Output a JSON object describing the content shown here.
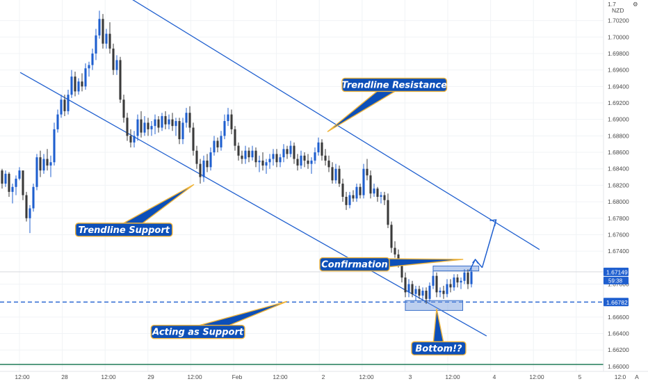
{
  "chart_data": {
    "type": "candlestick",
    "currency_label": "NZD",
    "y_ticks": [
      "1.70200",
      "1.70000",
      "1.69800",
      "1.69600",
      "1.69400",
      "1.69200",
      "1.69000",
      "1.68800",
      "1.68600",
      "1.68400",
      "1.68200",
      "1.68000",
      "1.67800",
      "1.67600",
      "1.67400",
      "1.67000",
      "1.66600",
      "1.66400",
      "1.66200",
      "1.66000"
    ],
    "y_top_partial_label": "1.7",
    "ylim": [
      1.6594,
      1.7045
    ],
    "x_ticks": [
      "12:00",
      "28",
      "12:00",
      "29",
      "12:00",
      "Feb",
      "12:00",
      "2",
      "12:00",
      "3",
      "12:00",
      "4",
      "12:00",
      "5",
      "12:0"
    ],
    "corner_label": "A",
    "current_price": {
      "value": "1.67149",
      "countdown": "59:38",
      "level": 1.67149
    },
    "support_level": {
      "value": "1.66782",
      "level": 1.66782
    },
    "colors": {
      "bull": "#1f5fcf",
      "bear": "#3a3a3a",
      "trendline": "#1f5fcf",
      "callout_fill": "#0d4fb8",
      "callout_border": "#f0b43a",
      "zone": "#6a95db"
    },
    "candles": [
      [
        1.6838,
        1.684,
        1.6816,
        1.6822
      ],
      [
        1.6822,
        1.6838,
        1.6818,
        1.6834
      ],
      [
        1.6834,
        1.6836,
        1.6806,
        1.6812
      ],
      [
        1.6812,
        1.6822,
        1.6798,
        1.6818
      ],
      [
        1.6818,
        1.6832,
        1.6808,
        1.6828
      ],
      [
        1.6828,
        1.6842,
        1.6826,
        1.6838
      ],
      [
        1.6838,
        1.6834,
        1.6802,
        1.6808
      ],
      [
        1.6808,
        1.6812,
        1.6776,
        1.678
      ],
      [
        1.678,
        1.6796,
        1.6762,
        1.6792
      ],
      [
        1.6792,
        1.6822,
        1.6788,
        1.6818
      ],
      [
        1.6818,
        1.6858,
        1.6814,
        1.6854
      ],
      [
        1.6854,
        1.6862,
        1.683,
        1.6838
      ],
      [
        1.6838,
        1.6858,
        1.6834,
        1.6852
      ],
      [
        1.6852,
        1.6864,
        1.6838,
        1.6844
      ],
      [
        1.6844,
        1.6856,
        1.683,
        1.6848
      ],
      [
        1.6848,
        1.6896,
        1.6844,
        1.6888
      ],
      [
        1.6888,
        1.6912,
        1.6884,
        1.6906
      ],
      [
        1.6906,
        1.693,
        1.6902,
        1.6924
      ],
      [
        1.6924,
        1.693,
        1.6904,
        1.691
      ],
      [
        1.691,
        1.6936,
        1.6906,
        1.693
      ],
      [
        1.693,
        1.696,
        1.6926,
        1.6952
      ],
      [
        1.6952,
        1.6958,
        1.6928,
        1.6934
      ],
      [
        1.6934,
        1.695,
        1.693,
        1.6946
      ],
      [
        1.6946,
        1.6956,
        1.6934,
        1.694
      ],
      [
        1.694,
        1.6968,
        1.6936,
        1.6962
      ],
      [
        1.6962,
        1.697,
        1.6952,
        1.6966
      ],
      [
        1.6966,
        1.6986,
        1.696,
        1.698
      ],
      [
        1.698,
        1.701,
        1.6972,
        1.7002
      ],
      [
        1.7002,
        1.7032,
        1.6998,
        1.7022
      ],
      [
        1.7022,
        1.7028,
        1.6986,
        1.6992
      ],
      [
        1.6992,
        1.701,
        1.6986,
        1.7004
      ],
      [
        1.7004,
        1.7018,
        1.698,
        1.6986
      ],
      [
        1.6986,
        1.6992,
        1.6954,
        1.696
      ],
      [
        1.696,
        1.6978,
        1.6954,
        1.6972
      ],
      [
        1.6972,
        1.6976,
        1.692,
        1.6924
      ],
      [
        1.6924,
        1.693,
        1.6896,
        1.6902
      ],
      [
        1.6902,
        1.6908,
        1.6874,
        1.688
      ],
      [
        1.688,
        1.6888,
        1.6866,
        1.6872
      ],
      [
        1.6872,
        1.6886,
        1.6866,
        1.688
      ],
      [
        1.688,
        1.6906,
        1.6874,
        1.69
      ],
      [
        1.69,
        1.691,
        1.6878,
        1.6884
      ],
      [
        1.6884,
        1.6904,
        1.688,
        1.6896
      ],
      [
        1.6896,
        1.6902,
        1.688,
        1.6888
      ],
      [
        1.6888,
        1.6898,
        1.688,
        1.6892
      ],
      [
        1.6892,
        1.6906,
        1.6882,
        1.69
      ],
      [
        1.69,
        1.6904,
        1.6884,
        1.689
      ],
      [
        1.689,
        1.6908,
        1.6886,
        1.6904
      ],
      [
        1.6904,
        1.691,
        1.6888,
        1.6894
      ],
      [
        1.6894,
        1.6906,
        1.6888,
        1.69
      ],
      [
        1.69,
        1.6908,
        1.6886,
        1.6892
      ],
      [
        1.6892,
        1.6902,
        1.688,
        1.6898
      ],
      [
        1.6898,
        1.6902,
        1.687,
        1.6876
      ],
      [
        1.6876,
        1.6902,
        1.687,
        1.6896
      ],
      [
        1.6896,
        1.6914,
        1.689,
        1.6908
      ],
      [
        1.6908,
        1.6916,
        1.6884,
        1.689
      ],
      [
        1.689,
        1.6896,
        1.6856,
        1.6862
      ],
      [
        1.6862,
        1.6868,
        1.684,
        1.6846
      ],
      [
        1.6846,
        1.6852,
        1.6822,
        1.683
      ],
      [
        1.683,
        1.6856,
        1.6824,
        1.685
      ],
      [
        1.685,
        1.6858,
        1.6836,
        1.6842
      ],
      [
        1.6842,
        1.6866,
        1.6838,
        1.686
      ],
      [
        1.686,
        1.688,
        1.6856,
        1.6874
      ],
      [
        1.6874,
        1.6878,
        1.686,
        1.6866
      ],
      [
        1.6866,
        1.6886,
        1.6862,
        1.688
      ],
      [
        1.688,
        1.6906,
        1.6876,
        1.6898
      ],
      [
        1.6898,
        1.6914,
        1.6892,
        1.6906
      ],
      [
        1.6906,
        1.6912,
        1.6882,
        1.6888
      ],
      [
        1.6888,
        1.6892,
        1.6862,
        1.6868
      ],
      [
        1.6868,
        1.6872,
        1.685,
        1.6856
      ],
      [
        1.6856,
        1.6862,
        1.6846,
        1.6852
      ],
      [
        1.6852,
        1.6868,
        1.6846,
        1.6862
      ],
      [
        1.6862,
        1.6866,
        1.6848,
        1.6854
      ],
      [
        1.6854,
        1.6868,
        1.685,
        1.6862
      ],
      [
        1.6862,
        1.6866,
        1.6842,
        1.6848
      ],
      [
        1.6848,
        1.6856,
        1.6836,
        1.685
      ],
      [
        1.685,
        1.686,
        1.6838,
        1.6844
      ],
      [
        1.6844,
        1.6852,
        1.6834,
        1.6848
      ],
      [
        1.6848,
        1.6858,
        1.684,
        1.6852
      ],
      [
        1.6852,
        1.6864,
        1.6844,
        1.6858
      ],
      [
        1.6858,
        1.6864,
        1.6842,
        1.6848
      ],
      [
        1.6848,
        1.6858,
        1.6842,
        1.6854
      ],
      [
        1.6854,
        1.687,
        1.6848,
        1.6864
      ],
      [
        1.6864,
        1.6868,
        1.6852,
        1.6858
      ],
      [
        1.6858,
        1.6874,
        1.6854,
        1.6868
      ],
      [
        1.6868,
        1.6872,
        1.6846,
        1.6852
      ],
      [
        1.6852,
        1.6858,
        1.6838,
        1.6844
      ],
      [
        1.6844,
        1.6862,
        1.684,
        1.6856
      ],
      [
        1.6856,
        1.686,
        1.6842,
        1.685
      ],
      [
        1.685,
        1.6858,
        1.684,
        1.6846
      ],
      [
        1.6846,
        1.6854,
        1.6834,
        1.685
      ],
      [
        1.685,
        1.6866,
        1.6846,
        1.686
      ],
      [
        1.686,
        1.6878,
        1.6856,
        1.6872
      ],
      [
        1.6872,
        1.6876,
        1.685,
        1.6856
      ],
      [
        1.6856,
        1.6864,
        1.6844,
        1.685
      ],
      [
        1.685,
        1.6856,
        1.6836,
        1.6842
      ],
      [
        1.6842,
        1.6848,
        1.6822,
        1.6826
      ],
      [
        1.6826,
        1.6846,
        1.6822,
        1.684
      ],
      [
        1.684,
        1.6844,
        1.6818,
        1.6822
      ],
      [
        1.6822,
        1.6828,
        1.68,
        1.6806
      ],
      [
        1.6806,
        1.6812,
        1.679,
        1.6796
      ],
      [
        1.6796,
        1.6812,
        1.6792,
        1.6808
      ],
      [
        1.6808,
        1.6814,
        1.68,
        1.6804
      ],
      [
        1.6804,
        1.6822,
        1.68,
        1.6818
      ],
      [
        1.6818,
        1.6822,
        1.6804,
        1.6808
      ],
      [
        1.6808,
        1.6846,
        1.6804,
        1.684
      ],
      [
        1.684,
        1.6852,
        1.6826,
        1.6832
      ],
      [
        1.6832,
        1.6838,
        1.6804,
        1.681
      ],
      [
        1.681,
        1.6822,
        1.6806,
        1.6816
      ],
      [
        1.6816,
        1.6818,
        1.68,
        1.6806
      ],
      [
        1.6806,
        1.6812,
        1.6798,
        1.6808
      ],
      [
        1.6808,
        1.6812,
        1.6796,
        1.6802
      ],
      [
        1.6802,
        1.681,
        1.6768,
        1.6772
      ],
      [
        1.6772,
        1.6776,
        1.6738,
        1.6744
      ],
      [
        1.6744,
        1.6752,
        1.6732,
        1.6736
      ],
      [
        1.6736,
        1.6742,
        1.672,
        1.6726
      ],
      [
        1.6726,
        1.673,
        1.6702,
        1.6708
      ],
      [
        1.6708,
        1.6714,
        1.6684,
        1.669
      ],
      [
        1.669,
        1.6706,
        1.6684,
        1.67
      ],
      [
        1.67,
        1.6704,
        1.6684,
        1.6688
      ],
      [
        1.6688,
        1.6698,
        1.668,
        1.6694
      ],
      [
        1.6694,
        1.6698,
        1.6682,
        1.6686
      ],
      [
        1.6686,
        1.6696,
        1.668,
        1.6692
      ],
      [
        1.6692,
        1.6696,
        1.6676,
        1.6682
      ],
      [
        1.6682,
        1.6702,
        1.6678,
        1.6698
      ],
      [
        1.6698,
        1.6716,
        1.6694,
        1.671
      ],
      [
        1.671,
        1.6714,
        1.6684,
        1.669
      ],
      [
        1.669,
        1.6696,
        1.6684,
        1.6692
      ],
      [
        1.6692,
        1.6698,
        1.6682,
        1.6688
      ],
      [
        1.6688,
        1.6706,
        1.6684,
        1.67
      ],
      [
        1.67,
        1.6706,
        1.669,
        1.6696
      ],
      [
        1.6696,
        1.6712,
        1.6692,
        1.6708
      ],
      [
        1.6708,
        1.6712,
        1.6696,
        1.6702
      ],
      [
        1.6702,
        1.6708,
        1.6694,
        1.6704
      ],
      [
        1.6704,
        1.6718,
        1.67,
        1.6714
      ],
      [
        1.6714,
        1.6718,
        1.6694,
        1.67
      ],
      [
        1.67,
        1.672,
        1.6696,
        1.6715
      ]
    ],
    "trendlines": [
      {
        "name": "upper",
        "from": [
          0.1226,
          1.7085
        ],
        "to": [
          0.8326,
          1.6742
        ]
      },
      {
        "name": "lower",
        "from": [
          0.0312,
          1.6957
        ],
        "to": [
          0.7509,
          1.6637
        ]
      }
    ],
    "horizontal_line": {
      "level": 1.66782,
      "style": "dashed"
    },
    "zones": [
      {
        "name": "resistance-zone",
        "x_from": 0.6684,
        "x_to": 0.7389,
        "y_from": 1.6716,
        "y_to": 1.6722
      },
      {
        "name": "support-zone",
        "x_from": 0.6255,
        "x_to": 0.7141,
        "y_from": 1.6668,
        "y_to": 1.668
      }
    ],
    "projection_arrows": [
      {
        "from": [
          0.7244,
          1.6716
        ],
        "to": [
          0.7335,
          1.673
        ]
      },
      {
        "from": [
          0.7335,
          1.673
        ],
        "to": [
          0.7441,
          1.672
        ]
      },
      {
        "from": [
          0.7441,
          1.672
        ],
        "to": [
          0.7655,
          1.6778
        ]
      }
    ],
    "annotations": [
      {
        "text": "Trendline Resistance",
        "box": [
          0.5279,
          1.695,
          0.6893,
          1.6934
        ],
        "pointer_tip": [
          0.5054,
          1.6885
        ]
      },
      {
        "text": "Trendline Support",
        "box": [
          0.1166,
          1.6774,
          0.2659,
          1.6758
        ],
        "pointer_tip": [
          0.2993,
          1.6821
        ]
      },
      {
        "text": "Confirmation",
        "box": [
          0.4936,
          1.6732,
          0.6009,
          1.6716
        ],
        "pointer_tip": [
          0.7148,
          1.673
        ]
      },
      {
        "text": "Acting as Support",
        "box": [
          0.2332,
          1.665,
          0.3776,
          1.6634
        ],
        "pointer_tip": [
          0.4431,
          1.6679
        ]
      },
      {
        "text": "Bottom!?",
        "box": [
          0.6352,
          1.663,
          0.7188,
          1.6614
        ],
        "pointer_tip": [
          0.6738,
          1.667
        ]
      }
    ],
    "grid": true,
    "legend": "none"
  }
}
